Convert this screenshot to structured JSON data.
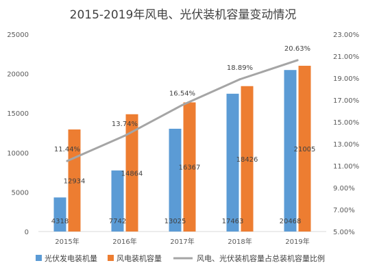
{
  "chart_data": {
    "type": "bar",
    "title": "2015-2019年风电、光伏装机容量变动情况",
    "categories": [
      "2015年",
      "2016年",
      "2017年",
      "2018年",
      "2019年"
    ],
    "series": [
      {
        "name": "光伏发电装机量",
        "kind": "bar",
        "axis": "left",
        "color": "#5B9BD5",
        "values": [
          4318,
          7742,
          13025,
          17463,
          20468
        ]
      },
      {
        "name": "风电装机容量",
        "kind": "bar",
        "axis": "left",
        "color": "#ED7D31",
        "values": [
          12934,
          14864,
          16367,
          18426,
          21005
        ]
      },
      {
        "name": "风电、光伏装机容量占总装机容量比例",
        "kind": "line",
        "axis": "right",
        "color": "#A5A5A5",
        "values": [
          11.44,
          13.74,
          16.54,
          18.89,
          20.63
        ]
      }
    ],
    "y_left": {
      "min": 0,
      "max": 25000,
      "ticks": [
        "0",
        "5000",
        "10000",
        "15000",
        "20000",
        "25000"
      ]
    },
    "y_right": {
      "min": 5,
      "max": 23,
      "ticks": [
        "5.00%",
        "7.00%",
        "9.00%",
        "11.00%",
        "13.00%",
        "15.00%",
        "17.00%",
        "19.00%",
        "21.00%",
        "23.00%"
      ]
    },
    "line_labels": [
      "11.44%",
      "13.74%",
      "16.54%",
      "18.89%",
      "20.63%"
    ],
    "bar_labels_series1": [
      "4318",
      "7742",
      "13025",
      "17463",
      "20468"
    ],
    "bar_labels_series2": [
      "12934",
      "14864",
      "16367",
      "18426",
      "21005"
    ],
    "grid": false,
    "legend_position": "bottom"
  }
}
